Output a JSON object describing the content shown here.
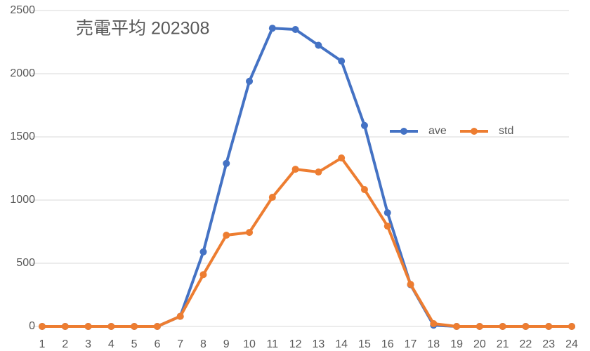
{
  "chart_data": {
    "type": "line",
    "title": "売電平均 202308",
    "categories": [
      "1",
      "2",
      "3",
      "4",
      "5",
      "6",
      "7",
      "8",
      "9",
      "10",
      "11",
      "12",
      "13",
      "14",
      "15",
      "16",
      "17",
      "18",
      "19",
      "20",
      "21",
      "22",
      "23",
      "24"
    ],
    "series": [
      {
        "name": "ave",
        "color": "#4472c4",
        "values": [
          0,
          0,
          0,
          0,
          0,
          0,
          80,
          590,
          1290,
          1940,
          2360,
          2350,
          2225,
          2100,
          1590,
          900,
          330,
          10,
          0,
          0,
          0,
          0,
          0,
          0
        ]
      },
      {
        "name": "std",
        "color": "#ed7d31",
        "values": [
          0,
          0,
          0,
          0,
          0,
          0,
          80,
          410,
          722,
          744,
          1022,
          1244,
          1222,
          1333,
          1083,
          794,
          333,
          22,
          0,
          0,
          0,
          0,
          0,
          0
        ]
      }
    ],
    "ylim": [
      0,
      2500
    ],
    "yticks": [
      0,
      500,
      1000,
      1500,
      2000,
      2500
    ],
    "grid": true
  }
}
